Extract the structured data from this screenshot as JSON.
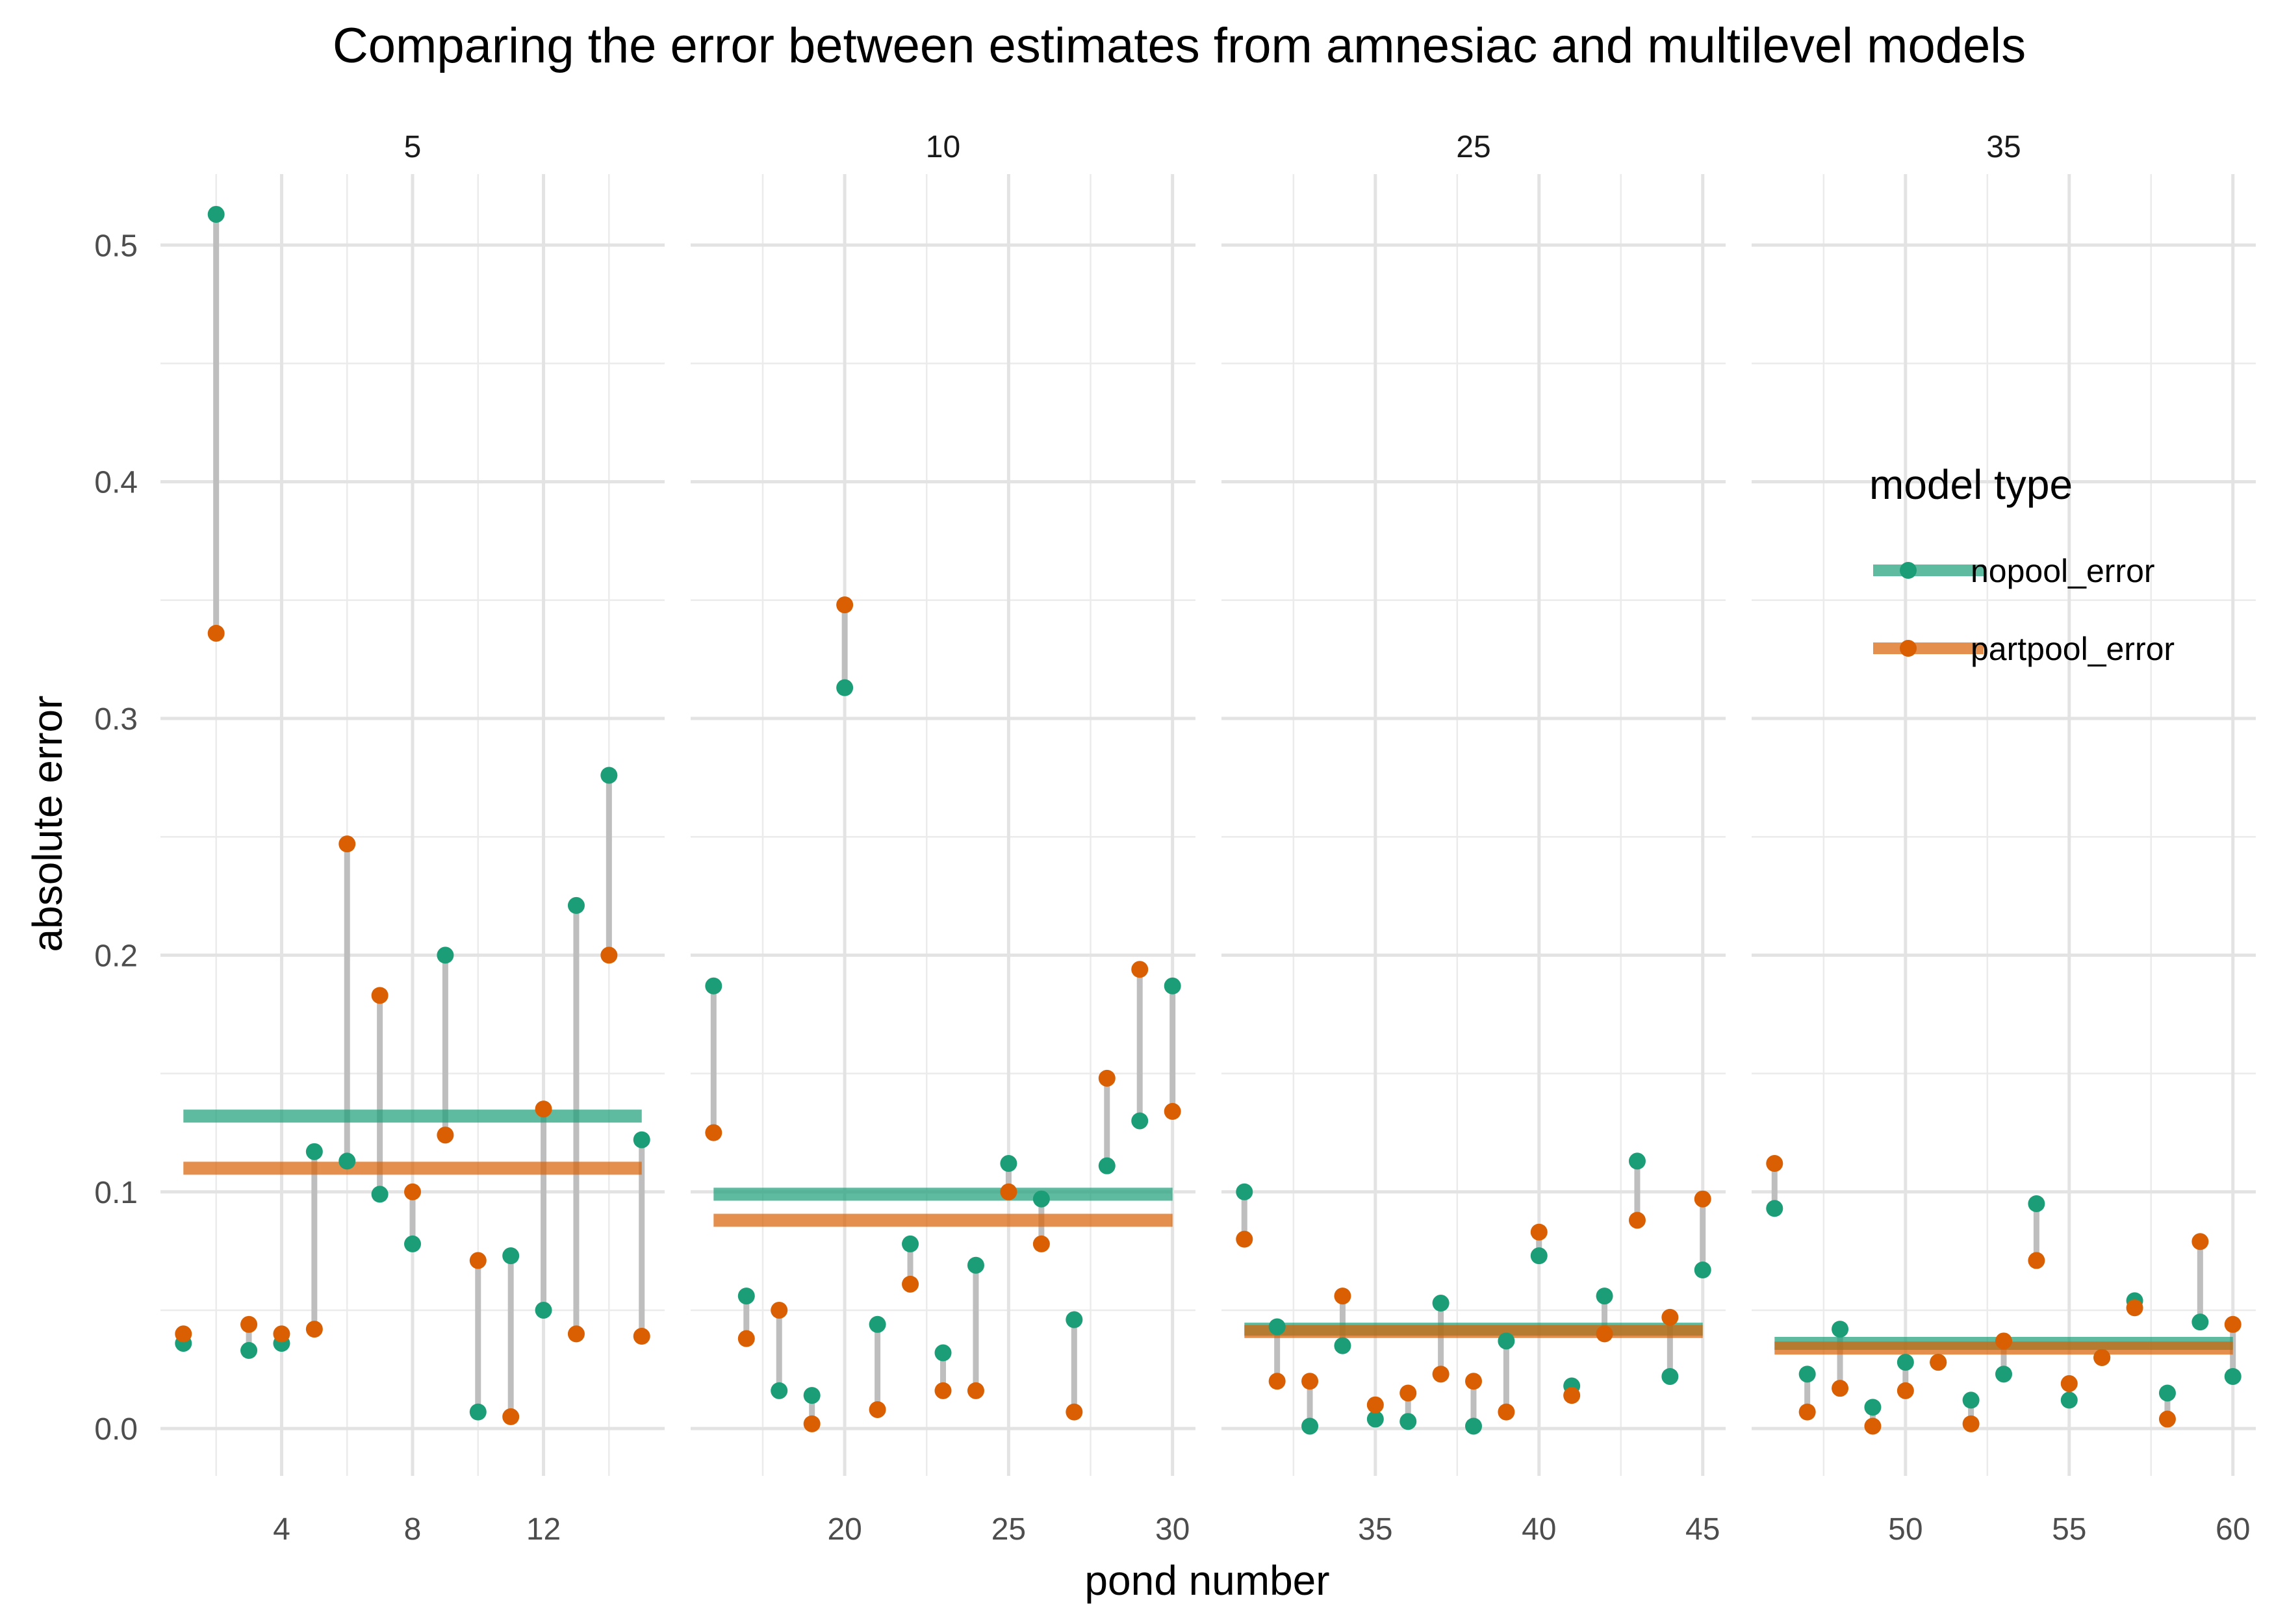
{
  "chart_data": {
    "type": "scatter",
    "title": "Comparing the error between estimates from amnesiac and multilevel models",
    "xlabel": "pond number",
    "ylabel": "absolute error",
    "ylim": [
      -0.02,
      0.53
    ],
    "y_ticks": [
      0.0,
      0.1,
      0.2,
      0.3,
      0.4,
      0.5
    ],
    "y_tick_labels": [
      "0.0",
      "0.1",
      "0.2",
      "0.3",
      "0.4",
      "0.5"
    ],
    "grid": true,
    "legend": {
      "title": "model type",
      "position": "right",
      "entries": [
        "nopool_error",
        "partpool_error"
      ]
    },
    "colors": {
      "nopool_error": "#1b9e77",
      "partpool_error": "#d95f02",
      "segment": "#bebebe"
    },
    "facets": [
      {
        "label": "5",
        "xlim": [
          0.3,
          15.7
        ],
        "x_ticks": [
          4,
          8,
          12
        ],
        "x_minor": [
          2,
          6,
          10,
          14
        ],
        "ponds": [
          1,
          2,
          3,
          4,
          5,
          6,
          7,
          8,
          9,
          10,
          11,
          12,
          13,
          14,
          15
        ],
        "nopool_error": [
          0.036,
          0.513,
          0.033,
          0.036,
          0.117,
          0.113,
          0.099,
          0.078,
          0.2,
          0.007,
          0.073,
          0.05,
          0.221,
          0.276,
          0.122
        ],
        "partpool_error": [
          0.04,
          0.336,
          0.044,
          0.04,
          0.042,
          0.247,
          0.183,
          0.1,
          0.124,
          0.071,
          0.005,
          0.135,
          0.04,
          0.2,
          0.039
        ],
        "nopool_mean": 0.132,
        "partpool_mean": 0.11
      },
      {
        "label": "10",
        "xlim": [
          15.3,
          30.7
        ],
        "x_ticks": [
          20,
          25,
          30
        ],
        "x_minor": [
          17.5,
          22.5,
          27.5
        ],
        "ponds": [
          16,
          17,
          18,
          19,
          20,
          21,
          22,
          23,
          24,
          25,
          26,
          27,
          28,
          29,
          30
        ],
        "nopool_error": [
          0.187,
          0.056,
          0.016,
          0.014,
          0.313,
          0.044,
          0.078,
          0.032,
          0.069,
          0.112,
          0.097,
          0.046,
          0.111,
          0.13,
          0.187
        ],
        "partpool_error": [
          0.125,
          0.038,
          0.05,
          0.002,
          0.348,
          0.008,
          0.061,
          0.016,
          0.016,
          0.1,
          0.078,
          0.007,
          0.148,
          0.194,
          0.134
        ],
        "nopool_mean": 0.099,
        "partpool_mean": 0.088
      },
      {
        "label": "25",
        "xlim": [
          30.3,
          45.7
        ],
        "x_ticks": [
          35,
          40,
          45
        ],
        "x_minor": [
          32.5,
          37.5,
          42.5
        ],
        "ponds": [
          31,
          32,
          33,
          34,
          35,
          36,
          37,
          38,
          39,
          40,
          41,
          42,
          43,
          44,
          45
        ],
        "nopool_error": [
          0.1,
          0.043,
          0.001,
          0.035,
          0.004,
          0.003,
          0.053,
          0.001,
          0.037,
          0.073,
          0.018,
          0.056,
          0.113,
          0.022,
          0.067
        ],
        "partpool_error": [
          0.08,
          0.02,
          0.02,
          0.056,
          0.01,
          0.015,
          0.023,
          0.02,
          0.007,
          0.083,
          0.014,
          0.04,
          0.088,
          0.047,
          0.097
        ],
        "nopool_mean": 0.042,
        "partpool_mean": 0.041
      },
      {
        "label": "35",
        "xlim": [
          45.3,
          60.7
        ],
        "x_ticks": [
          50,
          55,
          60
        ],
        "x_minor": [
          47.5,
          52.5,
          57.5
        ],
        "ponds": [
          46,
          47,
          48,
          49,
          50,
          51,
          52,
          53,
          54,
          55,
          56,
          57,
          58,
          59,
          60
        ],
        "nopool_error": [
          0.093,
          0.023,
          0.042,
          0.009,
          0.028,
          0.028,
          0.012,
          0.023,
          0.095,
          0.012,
          0.03,
          0.054,
          0.015,
          0.045,
          0.022
        ],
        "partpool_error": [
          0.112,
          0.007,
          0.017,
          0.001,
          0.016,
          0.028,
          0.002,
          0.037,
          0.071,
          0.019,
          0.03,
          0.051,
          0.004,
          0.079,
          0.044
        ],
        "nopool_mean": 0.036,
        "partpool_mean": 0.034
      }
    ]
  }
}
